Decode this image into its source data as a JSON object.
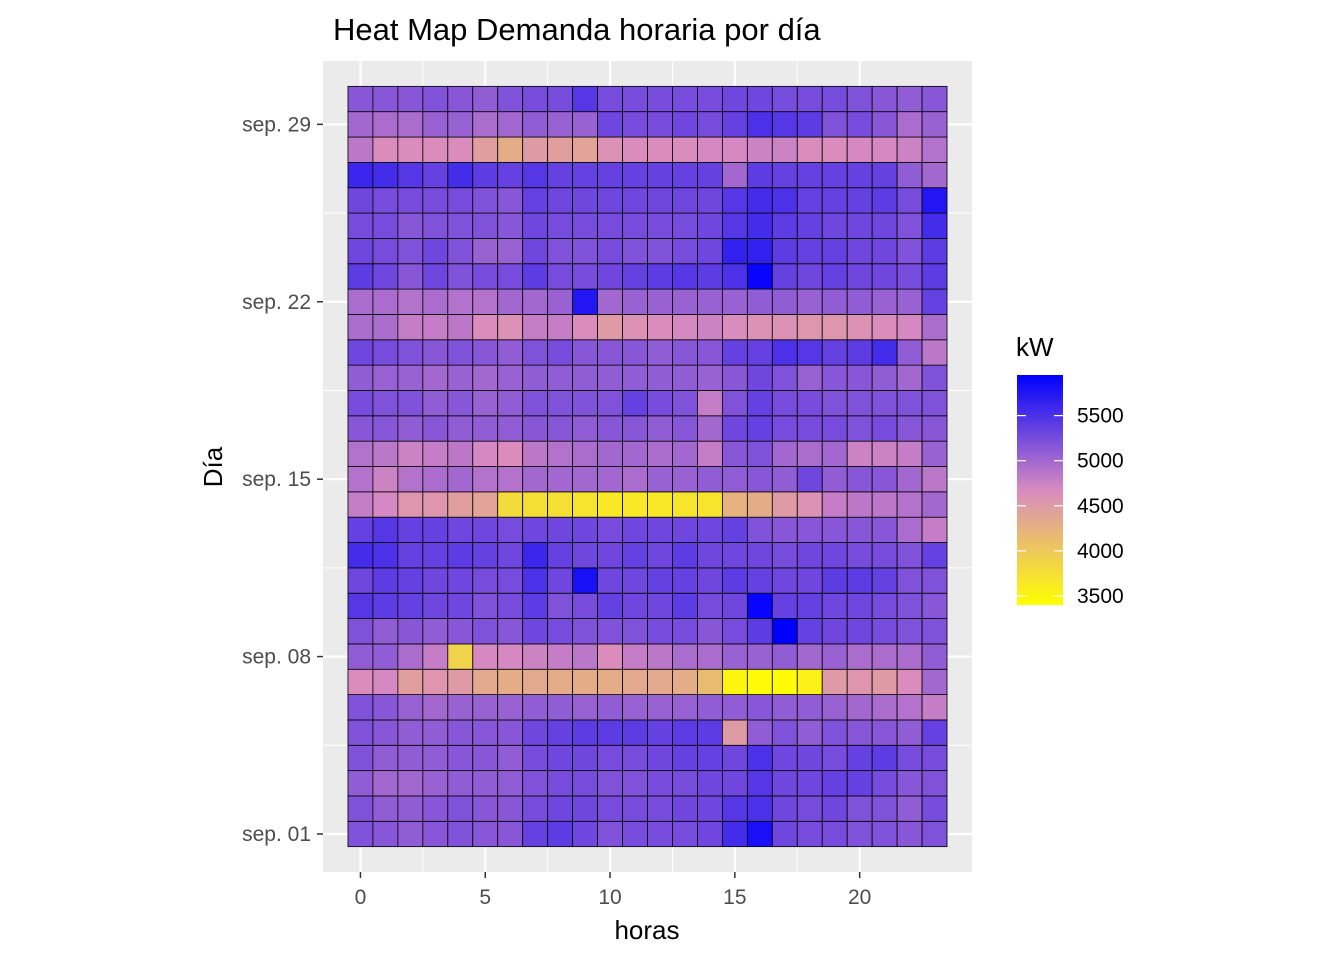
{
  "chart_data": {
    "type": "heatmap",
    "title": "Heat Map Demanda horaria por día",
    "xlabel": "horas",
    "ylabel": "Día",
    "x_ticks": [
      0,
      5,
      10,
      15,
      20
    ],
    "x_range": [
      -1.5,
      24.5
    ],
    "y_ticks": [
      {
        "day": 1,
        "label": "sep. 01"
      },
      {
        "day": 8,
        "label": "sep. 08"
      },
      {
        "day": 15,
        "label": "sep. 15"
      },
      {
        "day": 22,
        "label": "sep. 22"
      },
      {
        "day": 29,
        "label": "sep. 29"
      }
    ],
    "y_range": [
      -0.5,
      31.5
    ],
    "legend": {
      "title": "kW",
      "min": 3400,
      "max": 5950,
      "breaks": [
        5500,
        5000,
        4500,
        4000,
        3500
      ],
      "low_color": "#ffff00",
      "mid_color": "#d98bc0",
      "high_color": "#0000ff"
    },
    "hours": [
      0,
      1,
      2,
      3,
      4,
      5,
      6,
      7,
      8,
      9,
      10,
      11,
      12,
      13,
      14,
      15,
      16,
      17,
      18,
      19,
      20,
      21,
      22,
      23
    ],
    "days": [
      1,
      2,
      3,
      4,
      5,
      6,
      7,
      8,
      9,
      10,
      11,
      12,
      13,
      14,
      15,
      16,
      17,
      18,
      19,
      20,
      21,
      22,
      23,
      24,
      25,
      26,
      27,
      28,
      29,
      30
    ],
    "values": [
      [
        5200,
        5150,
        5100,
        5150,
        5200,
        5150,
        5150,
        5350,
        5400,
        5300,
        5200,
        5250,
        5250,
        5250,
        5300,
        5550,
        5800,
        5300,
        5250,
        5250,
        5200,
        5200,
        5150,
        5200
      ],
      [
        5200,
        5100,
        5100,
        5150,
        5200,
        5150,
        5150,
        5250,
        5300,
        5300,
        5250,
        5250,
        5250,
        5300,
        5300,
        5450,
        5500,
        5300,
        5250,
        5300,
        5200,
        5200,
        5100,
        5250
      ],
      [
        5100,
        5000,
        5000,
        5050,
        5100,
        5100,
        5100,
        5200,
        5250,
        5250,
        5200,
        5200,
        5250,
        5250,
        5300,
        5300,
        5450,
        5300,
        5300,
        5350,
        5350,
        5250,
        5150,
        5200
      ],
      [
        5200,
        5100,
        5100,
        5100,
        5150,
        5150,
        5100,
        5250,
        5300,
        5300,
        5250,
        5250,
        5300,
        5350,
        5350,
        5300,
        5500,
        5300,
        5300,
        5250,
        5350,
        5400,
        5250,
        5250
      ],
      [
        5200,
        5150,
        5100,
        5100,
        5150,
        5150,
        5150,
        5300,
        5350,
        5400,
        5400,
        5400,
        5350,
        5400,
        5400,
        4500,
        5100,
        5200,
        5100,
        5200,
        5150,
        5150,
        5100,
        5350
      ],
      [
        5200,
        5150,
        5050,
        5000,
        5050,
        5050,
        5050,
        5100,
        5100,
        5050,
        5100,
        5050,
        5050,
        5050,
        5100,
        5100,
        5150,
        5100,
        5100,
        5050,
        5000,
        4950,
        4900,
        4800
      ],
      [
        4650,
        4700,
        4450,
        4550,
        4500,
        4350,
        4300,
        4350,
        4300,
        4300,
        4300,
        4350,
        4350,
        4300,
        4150,
        3500,
        3450,
        3450,
        3550,
        4500,
        4550,
        4500,
        4650,
        5000
      ],
      [
        5100,
        5100,
        4950,
        4800,
        3900,
        4700,
        4700,
        4750,
        4800,
        4850,
        4650,
        4800,
        4850,
        4950,
        4950,
        5050,
        5050,
        5100,
        5000,
        5050,
        4950,
        4950,
        4950,
        5100
      ],
      [
        5200,
        5100,
        5150,
        5100,
        5150,
        5200,
        5150,
        5300,
        5250,
        5200,
        5200,
        5200,
        5250,
        5250,
        5150,
        5250,
        5400,
        5950,
        5350,
        5300,
        5300,
        5250,
        5200,
        5200
      ],
      [
        5450,
        5400,
        5350,
        5300,
        5300,
        5200,
        5250,
        5400,
        5200,
        5250,
        5350,
        5300,
        5300,
        5400,
        5250,
        5300,
        5900,
        5350,
        5350,
        5300,
        5300,
        5250,
        5200,
        5150
      ],
      [
        5300,
        5400,
        5350,
        5300,
        5300,
        5250,
        5250,
        5500,
        5300,
        5800,
        5300,
        5300,
        5350,
        5350,
        5300,
        5400,
        5350,
        5300,
        5300,
        5400,
        5400,
        5350,
        5200,
        5200
      ],
      [
        5550,
        5500,
        5350,
        5350,
        5400,
        5350,
        5300,
        5600,
        5350,
        5300,
        5300,
        5350,
        5300,
        5400,
        5300,
        5300,
        5300,
        5250,
        5300,
        5300,
        5250,
        5250,
        5200,
        5350
      ],
      [
        5350,
        5450,
        5350,
        5350,
        5300,
        5300,
        5250,
        5300,
        5300,
        5300,
        5250,
        5300,
        5300,
        5300,
        5300,
        5350,
        5200,
        5150,
        5150,
        5150,
        5150,
        5150,
        4950,
        4800
      ],
      [
        4800,
        4700,
        4550,
        4550,
        4450,
        4400,
        3800,
        3750,
        3750,
        3700,
        3650,
        3650,
        3650,
        3700,
        3700,
        4250,
        4300,
        4500,
        4600,
        4800,
        4850,
        4850,
        4900,
        5000
      ],
      [
        4900,
        4750,
        4900,
        4950,
        5000,
        4900,
        4900,
        5000,
        5000,
        5000,
        5000,
        4950,
        5050,
        5050,
        5100,
        5100,
        5150,
        5100,
        5300,
        5100,
        5150,
        5150,
        5000,
        4850
      ],
      [
        4900,
        4850,
        4750,
        4800,
        4850,
        4700,
        4650,
        4850,
        4900,
        4950,
        5000,
        5000,
        4950,
        5000,
        4800,
        5150,
        5200,
        5000,
        4950,
        5000,
        4750,
        4750,
        4800,
        5050
      ],
      [
        5150,
        5150,
        5100,
        5150,
        5100,
        5100,
        5100,
        5150,
        5150,
        5100,
        5150,
        5150,
        5100,
        5150,
        5000,
        5300,
        5350,
        5250,
        5250,
        5250,
        5200,
        5250,
        5150,
        5150
      ],
      [
        5250,
        5200,
        5200,
        5100,
        5150,
        5050,
        5100,
        5200,
        5200,
        5200,
        5200,
        5350,
        5250,
        5200,
        4800,
        5200,
        5350,
        5250,
        5250,
        5200,
        5200,
        5200,
        5200,
        5200
      ],
      [
        5100,
        5050,
        5050,
        5000,
        5050,
        5000,
        5050,
        5100,
        5100,
        5100,
        5100,
        5100,
        5100,
        5100,
        5050,
        5150,
        5300,
        5200,
        5050,
        5150,
        5150,
        5100,
        5000,
        5200
      ],
      [
        5300,
        5250,
        5200,
        5150,
        5200,
        5150,
        5100,
        5200,
        5250,
        5150,
        5150,
        5150,
        5100,
        5150,
        5150,
        5350,
        5350,
        5500,
        5450,
        5350,
        5400,
        5550,
        5100,
        4850
      ],
      [
        4950,
        4950,
        4800,
        4800,
        4850,
        4650,
        4600,
        4800,
        4800,
        4650,
        4500,
        4600,
        4650,
        4700,
        4750,
        4650,
        4600,
        4600,
        4550,
        4550,
        4600,
        4650,
        4700,
        4950
      ],
      [
        4950,
        4950,
        4900,
        4950,
        4900,
        4900,
        5000,
        5000,
        5050,
        5750,
        5000,
        5050,
        5050,
        5050,
        5050,
        5050,
        5100,
        5100,
        5050,
        5100,
        5100,
        5050,
        5050,
        5350
      ],
      [
        5400,
        5300,
        5150,
        5300,
        5200,
        5250,
        5250,
        5400,
        5250,
        5250,
        5300,
        5350,
        5400,
        5450,
        5400,
        5500,
        5900,
        5350,
        5300,
        5350,
        5300,
        5300,
        5250,
        5400
      ],
      [
        5300,
        5250,
        5200,
        5300,
        5200,
        5050,
        5050,
        5300,
        5200,
        5200,
        5250,
        5200,
        5200,
        5250,
        5300,
        5650,
        5650,
        5400,
        5350,
        5350,
        5300,
        5300,
        5200,
        5400
      ],
      [
        5250,
        5250,
        5150,
        5200,
        5200,
        5200,
        5150,
        5300,
        5250,
        5250,
        5250,
        5250,
        5250,
        5250,
        5300,
        5450,
        5550,
        5400,
        5350,
        5300,
        5300,
        5300,
        5200,
        5550
      ],
      [
        5300,
        5250,
        5250,
        5250,
        5250,
        5200,
        5150,
        5350,
        5300,
        5300,
        5300,
        5300,
        5300,
        5300,
        5300,
        5450,
        5550,
        5500,
        5350,
        5350,
        5350,
        5400,
        5250,
        5750
      ],
      [
        5600,
        5550,
        5450,
        5350,
        5550,
        5400,
        5350,
        5450,
        5350,
        5350,
        5350,
        5350,
        5350,
        5350,
        5350,
        5000,
        5400,
        5350,
        5350,
        5350,
        5350,
        5350,
        5100,
        5000
      ],
      [
        4850,
        4650,
        4650,
        4650,
        4650,
        4450,
        4300,
        4500,
        4450,
        4400,
        4600,
        4650,
        4650,
        4650,
        4700,
        4700,
        4750,
        4750,
        4650,
        4650,
        4700,
        4700,
        4750,
        4900
      ],
      [
        5000,
        4950,
        4950,
        5050,
        5050,
        4950,
        5000,
        5100,
        5050,
        5050,
        5300,
        5250,
        5250,
        5300,
        5250,
        5350,
        5500,
        5450,
        5400,
        5200,
        5250,
        5150,
        4950,
        5050
      ],
      [
        5150,
        5150,
        5150,
        5200,
        5150,
        5100,
        5200,
        5250,
        5250,
        5450,
        5250,
        5250,
        5250,
        5250,
        5250,
        5300,
        5300,
        5250,
        5250,
        5250,
        5200,
        5150,
        5100,
        5150
      ]
    ]
  }
}
